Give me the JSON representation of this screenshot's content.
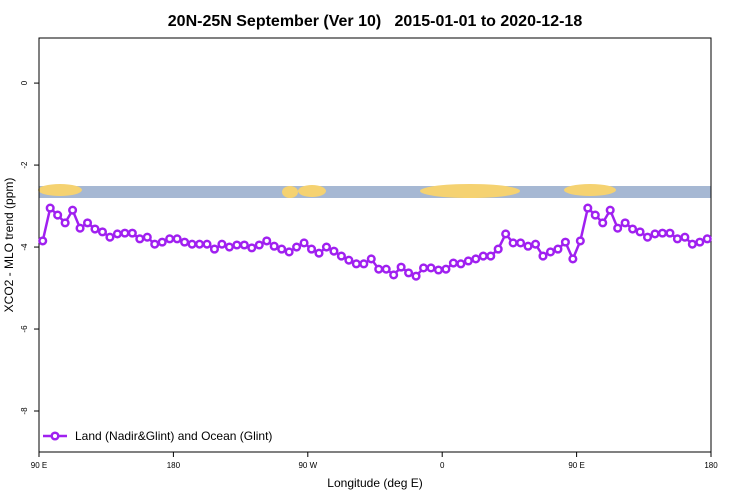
{
  "chart_data": {
    "type": "line",
    "title": "20N-25N September (Ver 10)   2015-01-01 to 2020-12-18",
    "x_label": "Longitude (deg E)",
    "y_label": "XCO2 - MLO trend (ppm)",
    "xlim": [
      90,
      540
    ],
    "ylim": [
      -9,
      1.1
    ],
    "xticks": [
      {
        "value": 90,
        "label": "90 E"
      },
      180,
      {
        "value": 270,
        "label": "90 W"
      },
      {
        "value": 360,
        "label": "0"
      },
      {
        "value": 450,
        "label": "90 E"
      },
      {
        "value": 540,
        "label": "180"
      }
    ],
    "yticks": [
      0,
      -2,
      -4,
      -6,
      -8
    ],
    "legend": "bottom-left",
    "x": [
      92.5,
      97.5,
      102.5,
      107.5,
      112.5,
      117.5,
      122.5,
      127.5,
      132.5,
      137.5,
      142.5,
      147.5,
      152.5,
      157.5,
      162.5,
      167.5,
      172.5,
      177.5,
      182.5,
      187.5,
      192.5,
      197.5,
      202.5,
      207.5,
      212.5,
      217.5,
      222.5,
      227.5,
      232.5,
      237.5,
      242.5,
      247.5,
      252.5,
      257.5,
      262.5,
      267.5,
      272.5,
      277.5,
      282.5,
      287.5,
      292.5,
      297.5,
      302.5,
      307.5,
      312.5,
      317.5,
      322.5,
      327.5,
      332.5,
      337.5,
      342.5,
      347.5,
      352.5,
      357.5,
      362.5,
      367.5,
      372.5,
      377.5,
      382.5,
      387.5,
      392.5,
      397.5,
      402.5,
      407.5,
      412.5,
      417.5,
      422.5,
      427.5,
      432.5,
      437.5,
      442.5,
      447.5,
      452.5,
      457.5,
      462.5,
      467.5,
      472.5,
      477.5,
      482.5,
      487.5,
      492.5,
      497.5,
      502.5,
      507.5,
      512.5,
      517.5,
      522.5,
      527.5,
      532.5,
      537.5
    ],
    "series": [
      {
        "name": "Land (Nadir&Glint) and Ocean (Glint)",
        "color": "#a020f0",
        "values": [
          -3.85,
          -3.05,
          -3.22,
          -3.41,
          -3.1,
          -3.54,
          -3.41,
          -3.56,
          -3.63,
          -3.76,
          -3.68,
          -3.66,
          -3.66,
          -3.8,
          -3.76,
          -3.93,
          -3.88,
          -3.8,
          -3.8,
          -3.88,
          -3.93,
          -3.93,
          -3.93,
          -4.05,
          -3.93,
          -4.0,
          -3.95,
          -3.95,
          -4.02,
          -3.95,
          -3.85,
          -3.98,
          -4.05,
          -4.12,
          -4.0,
          -3.9,
          -4.05,
          -4.15,
          -4.0,
          -4.1,
          -4.22,
          -4.32,
          -4.41,
          -4.41,
          -4.29,
          -4.54,
          -4.54,
          -4.68,
          -4.49,
          -4.63,
          -4.71,
          -4.51,
          -4.51,
          -4.56,
          -4.54,
          -4.39,
          -4.41,
          -4.34,
          -4.29,
          -4.22,
          -4.22,
          -4.05,
          -3.68,
          -3.9,
          -3.9,
          -3.98,
          -3.93,
          -4.22,
          -4.12,
          -4.05,
          -3.88,
          -4.29,
          -3.85,
          -3.05,
          -3.22,
          -3.41,
          -3.1,
          -3.54,
          -3.41,
          -3.56,
          -3.63,
          -3.76,
          -3.68,
          -3.66,
          -3.66,
          -3.8,
          -3.76,
          -3.93,
          -3.88,
          -3.8
        ]
      }
    ]
  }
}
